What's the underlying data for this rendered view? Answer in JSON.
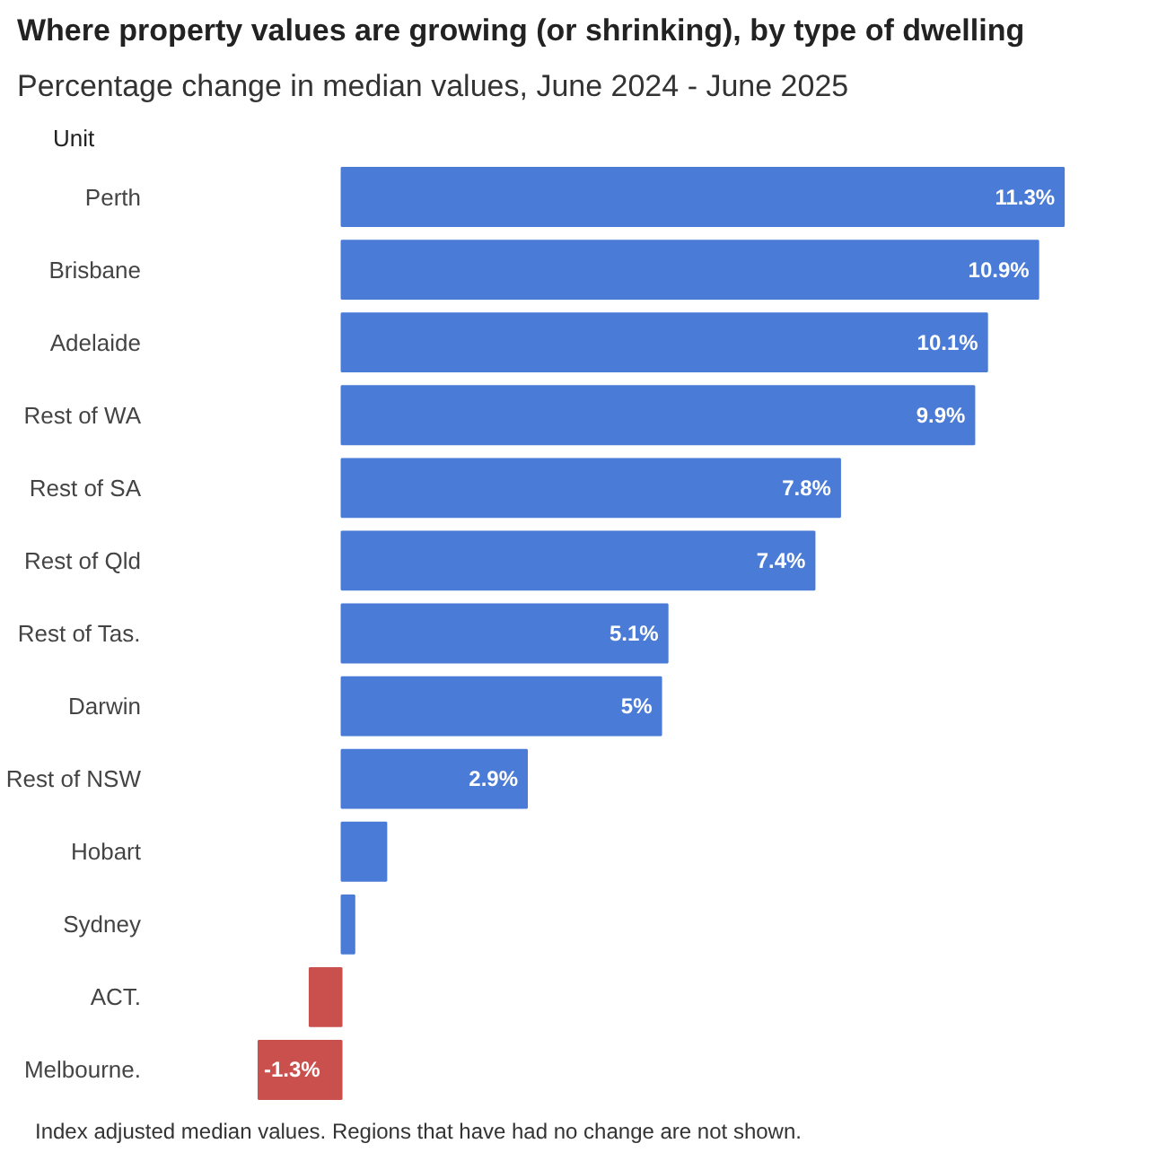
{
  "chart_data": {
    "type": "bar",
    "orientation": "horizontal",
    "title": "Where property values are growing (or shrinking), by type of dwelling",
    "subtitle": "Percentage change in median values, June 2024 - June 2025",
    "categories": [
      "Perth",
      "Brisbane",
      "Adelaide",
      "Rest of WA",
      "Rest of SA",
      "Rest of Qld",
      "Rest of Tas.",
      "Darwin",
      "Rest of NSW",
      "Hobart",
      "Sydney",
      "ACT.",
      "Melbourne."
    ],
    "values": [
      11.3,
      10.9,
      10.1,
      9.9,
      7.8,
      7.4,
      5.1,
      5,
      2.9,
      0.7,
      0.2,
      -0.5,
      -1.3
    ],
    "colors": [
      "#4a7bd6",
      "#4a7bd6",
      "#4a7bd6",
      "#4a7bd6",
      "#4a7bd6",
      "#4a7bd6",
      "#4a7bd6",
      "#4a7bd6",
      "#4a7bd6",
      "#4a7bd6",
      "#4a7bd6",
      "#c9504d",
      "#c9504d"
    ],
    "value_labels": [
      "11.3%",
      "10.9%",
      "10.1%",
      "9.9%",
      "7.8%",
      "7.4%",
      "5.1%",
      "5%",
      "2.9%",
      null,
      null,
      null,
      "-1.3%"
    ],
    "annotations": [
      "Unit",
      "Index adjusted median values. Regions that have had no change are not shown."
    ]
  }
}
